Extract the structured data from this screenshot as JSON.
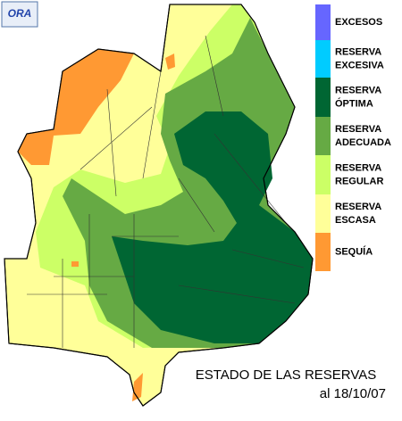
{
  "logo": "ORA",
  "title": "ESTADO DE LAS RESERVAS",
  "date": "al 18/10/07",
  "legend": [
    {
      "lines": [
        "EXCESOS"
      ],
      "color": "#6666ff"
    },
    {
      "lines": [
        "RESERVA",
        "EXCESIVA"
      ],
      "color": "#00ccff"
    },
    {
      "lines": [
        "RESERVA",
        "ÓPTIMA"
      ],
      "color": "#006633"
    },
    {
      "lines": [
        "RESERVA",
        "ADECUADA"
      ],
      "color": "#66aa44"
    },
    {
      "lines": [
        "RESERVA",
        "REGULAR"
      ],
      "color": "#ccff66"
    },
    {
      "lines": [
        "RESERVA",
        "ESCASA"
      ],
      "color": "#ffff99"
    },
    {
      "lines": [
        "SEQUÍA"
      ],
      "color": "#ff9933"
    }
  ]
}
